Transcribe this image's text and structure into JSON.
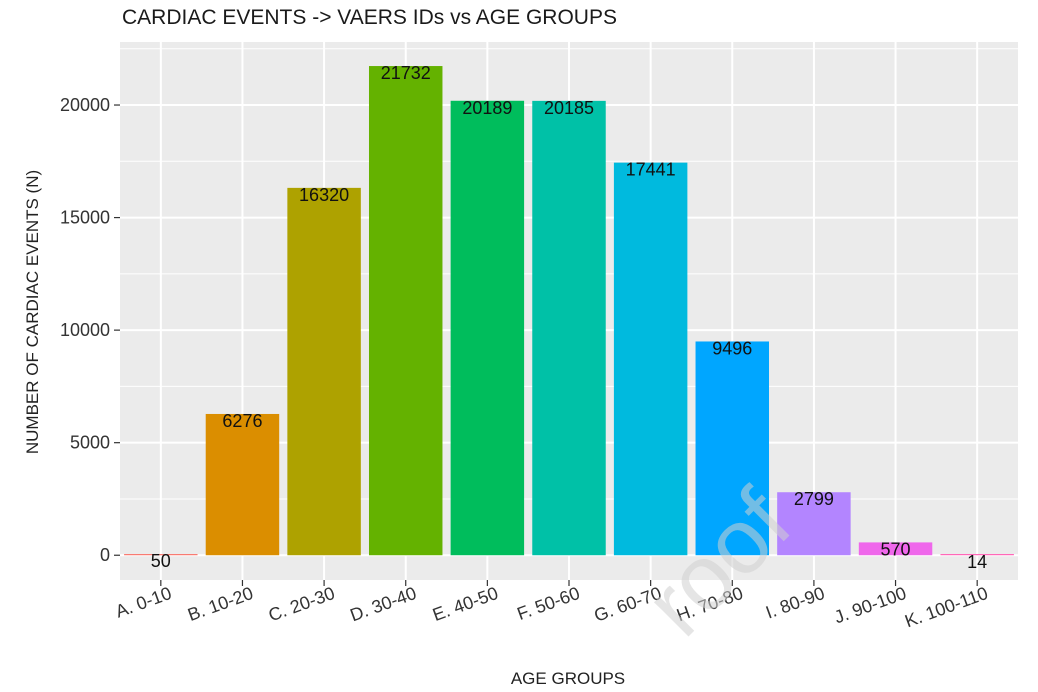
{
  "chart_data": {
    "type": "bar",
    "title": "CARDIAC EVENTS -> VAERS IDs vs AGE GROUPS",
    "xlabel": "AGE GROUPS",
    "ylabel": "NUMBER OF CARDIAC EVENTS (N)",
    "categories": [
      "A. 0-10",
      "B. 10-20",
      "C. 20-30",
      "D. 30-40",
      "E. 40-50",
      "F. 50-60",
      "G. 60-70",
      "H. 70-80",
      "I. 80-90",
      "J. 90-100",
      "K. 100-110"
    ],
    "values": [
      50,
      6276,
      16320,
      21732,
      20189,
      20185,
      17441,
      9496,
      2799,
      570,
      14
    ],
    "value_labels": [
      "50",
      "6276",
      "16320",
      "21732",
      "20189",
      "20185",
      "17441",
      "9496",
      "2799",
      "570",
      "14"
    ],
    "colors": [
      "#F8766D",
      "#DB8E00",
      "#AEA200",
      "#64B200",
      "#00BD5C",
      "#00C1A7",
      "#00BADE",
      "#00A6FF",
      "#B385FF",
      "#EF67EB",
      "#FF63B6"
    ],
    "yticks": [
      0,
      5000,
      10000,
      15000,
      20000
    ],
    "ytick_labels": [
      "0",
      "5000",
      "10000",
      "15000",
      "20000"
    ],
    "ylim": [
      -1100,
      22800
    ],
    "grid": true,
    "background": "#EBEBEB",
    "legend": "none",
    "watermark": "roof"
  }
}
